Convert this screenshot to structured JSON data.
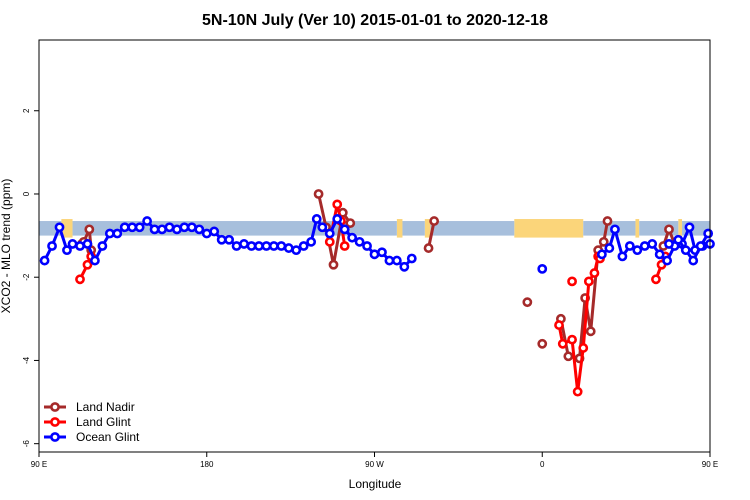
{
  "chart_data": {
    "type": "line",
    "title": "5N-10N July (Ver 10)   2015-01-01 to 2020-12-18",
    "xlabel": "Longitude",
    "ylabel": "XCO2 - MLO trend (ppm)",
    "xlim": [
      0,
      360
    ],
    "ylim": [
      -6.2,
      3.7
    ],
    "x_ticks": [
      {
        "value": 0,
        "label": "90 E"
      },
      {
        "value": 90,
        "label": "180"
      },
      {
        "value": 180,
        "label": "90 W"
      },
      {
        "value": 270,
        "label": "0"
      },
      {
        "value": 360,
        "label": "90 E"
      }
    ],
    "y_ticks": [
      {
        "value": -6,
        "label": "-6"
      },
      {
        "value": -4,
        "label": "-4"
      },
      {
        "value": -2,
        "label": "-2"
      },
      {
        "value": 0,
        "label": "0"
      },
      {
        "value": 2,
        "label": "2"
      }
    ],
    "background_band": {
      "y_min": -1.0,
      "y_max": -0.65,
      "color": "#a7bfdc"
    },
    "land_fill": {
      "color": "#fbd57a",
      "spans": [
        [
          12,
          18
        ],
        [
          192,
          195
        ],
        [
          207,
          210
        ],
        [
          255,
          292
        ],
        [
          320,
          322
        ],
        [
          343,
          345
        ]
      ]
    },
    "legend_position": "bottom-left",
    "series": [
      {
        "name": "Land Nadir",
        "color": "#a52a2a",
        "segments": [
          [
            [
              23,
              -1.2
            ],
            [
              24,
              -1.15
            ],
            [
              27,
              -0.85
            ],
            [
              28,
              -1.35
            ]
          ],
          [
            [
              150,
              0.0
            ],
            [
              154,
              -0.8
            ],
            [
              158,
              -1.7
            ],
            [
              163,
              -0.45
            ],
            [
              167,
              -0.7
            ]
          ],
          [
            [
              209,
              -1.3
            ],
            [
              212,
              -0.65
            ]
          ],
          [
            [
              262,
              -2.6
            ]
          ],
          [
            [
              270,
              -3.6
            ]
          ],
          [
            [
              280,
              -3.0
            ],
            [
              284,
              -3.9
            ],
            [
              290,
              -3.95
            ],
            [
              293,
              -2.5
            ],
            [
              296,
              -3.3
            ],
            [
              300,
              -1.35
            ],
            [
              303,
              -1.15
            ],
            [
              305,
              -0.65
            ]
          ],
          [
            [
              335,
              -1.25
            ],
            [
              338,
              -0.85
            ],
            [
              341,
              -1.2
            ]
          ]
        ]
      },
      {
        "name": "Land Glint",
        "color": "#ff0000",
        "segments": [
          [
            [
              22,
              -2.05
            ],
            [
              26,
              -1.7
            ],
            [
              28,
              -1.5
            ]
          ],
          [
            [
              156,
              -1.15
            ],
            [
              160,
              -0.25
            ],
            [
              162,
              -0.65
            ],
            [
              164,
              -1.25
            ]
          ],
          [
            [
              279,
              -3.15
            ],
            [
              281,
              -3.6
            ],
            [
              286,
              -3.5
            ],
            [
              289,
              -4.75
            ],
            [
              292,
              -3.7
            ],
            [
              295,
              -2.1
            ],
            [
              298,
              -1.9
            ],
            [
              300,
              -1.5
            ],
            [
              301,
              -1.55
            ]
          ],
          [
            [
              286,
              -2.1
            ]
          ],
          [
            [
              331,
              -2.05
            ],
            [
              334,
              -1.7
            ],
            [
              336,
              -1.5
            ]
          ]
        ]
      },
      {
        "name": "Ocean Glint",
        "color": "#0000ff",
        "segments": [
          [
            [
              3,
              -1.6
            ],
            [
              7,
              -1.25
            ],
            [
              11,
              -0.8
            ],
            [
              15,
              -1.35
            ],
            [
              18,
              -1.2
            ],
            [
              22,
              -1.25
            ],
            [
              26,
              -1.2
            ],
            [
              30,
              -1.6
            ],
            [
              34,
              -1.25
            ],
            [
              38,
              -0.95
            ],
            [
              42,
              -0.95
            ],
            [
              46,
              -0.8
            ],
            [
              50,
              -0.8
            ],
            [
              54,
              -0.8
            ],
            [
              58,
              -0.65
            ],
            [
              62,
              -0.85
            ],
            [
              66,
              -0.85
            ],
            [
              70,
              -0.8
            ],
            [
              74,
              -0.85
            ],
            [
              78,
              -0.8
            ],
            [
              82,
              -0.8
            ],
            [
              86,
              -0.85
            ],
            [
              90,
              -0.95
            ],
            [
              94,
              -0.9
            ],
            [
              98,
              -1.1
            ],
            [
              102,
              -1.1
            ],
            [
              106,
              -1.25
            ],
            [
              110,
              -1.2
            ],
            [
              114,
              -1.25
            ],
            [
              118,
              -1.25
            ],
            [
              122,
              -1.25
            ],
            [
              126,
              -1.25
            ],
            [
              130,
              -1.25
            ],
            [
              134,
              -1.3
            ],
            [
              138,
              -1.35
            ],
            [
              142,
              -1.25
            ],
            [
              146,
              -1.15
            ],
            [
              149,
              -0.6
            ],
            [
              152,
              -0.8
            ],
            [
              156,
              -0.95
            ],
            [
              160,
              -0.6
            ],
            [
              164,
              -0.85
            ],
            [
              168,
              -1.05
            ],
            [
              172,
              -1.15
            ],
            [
              176,
              -1.25
            ],
            [
              180,
              -1.45
            ],
            [
              184,
              -1.4
            ],
            [
              188,
              -1.6
            ],
            [
              192,
              -1.6
            ],
            [
              196,
              -1.75
            ],
            [
              200,
              -1.55
            ]
          ],
          [
            [
              270,
              -1.8
            ]
          ],
          [
            [
              302,
              -1.45
            ],
            [
              306,
              -1.3
            ],
            [
              309,
              -0.85
            ],
            [
              313,
              -1.5
            ],
            [
              317,
              -1.25
            ],
            [
              321,
              -1.35
            ],
            [
              325,
              -1.25
            ],
            [
              329,
              -1.2
            ],
            [
              333,
              -1.45
            ],
            [
              337,
              -1.6
            ],
            [
              341,
              -1.25
            ],
            [
              345,
              -1.2
            ],
            [
              349,
              -0.8
            ],
            [
              352,
              -1.35
            ],
            [
              356,
              -1.25
            ],
            [
              360,
              -1.2
            ]
          ],
          [
            [
              338,
              -1.2
            ],
            [
              343,
              -1.1
            ],
            [
              347,
              -1.35
            ],
            [
              351,
              -1.6
            ],
            [
              355,
              -1.25
            ],
            [
              359,
              -0.95
            ]
          ]
        ]
      }
    ]
  }
}
